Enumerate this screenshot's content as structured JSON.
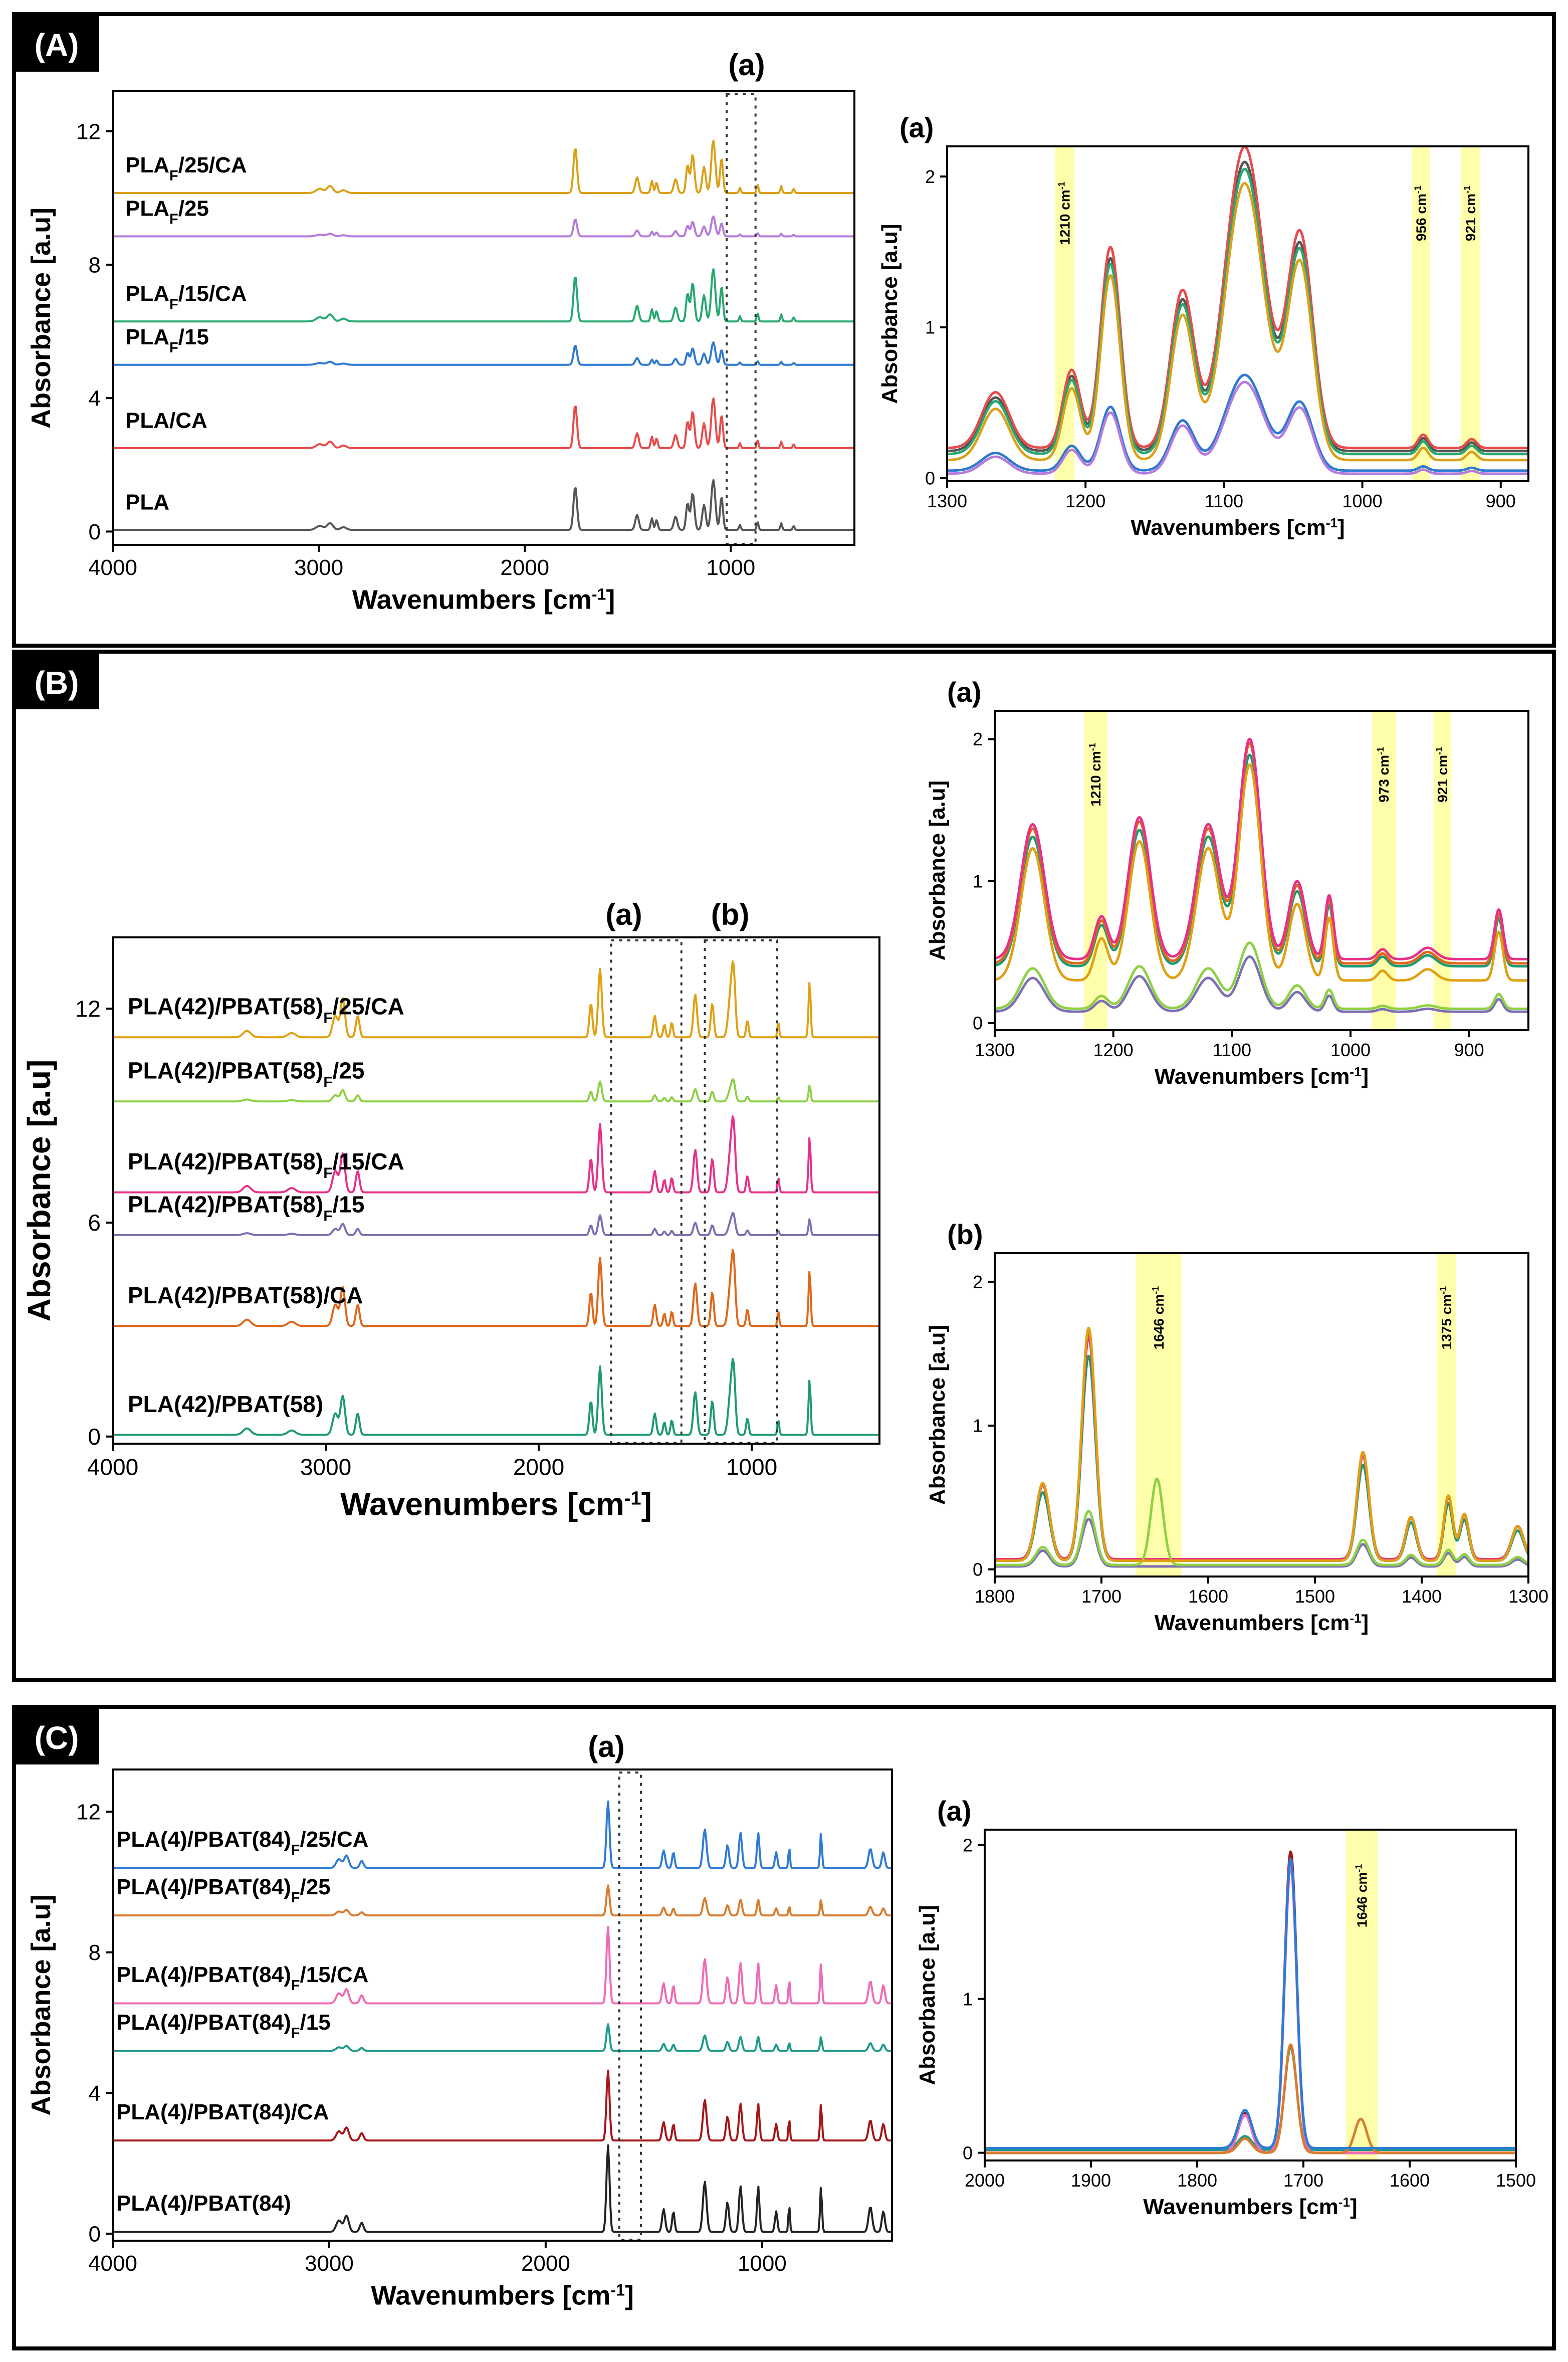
{
  "panels": [
    {
      "label": "(A)",
      "marker": "(a)",
      "xlabel": "Wavenumbers [cm",
      "xlabel_sup": "-1",
      "xlabel_end": "]",
      "ylabel": "Absorbance [a.u]",
      "xticks": [
        "4000",
        "3000",
        "2000",
        "1000"
      ],
      "yticks": [
        "0",
        "4",
        "8",
        "12"
      ]
    },
    {
      "label": "(B)",
      "marker_a": "(a)",
      "marker_b": "(b)",
      "xlabel": "Wavenumbers [cm",
      "xlabel_sup": "-1",
      "xlabel_end": "]",
      "ylabel": "Absorbance [a.u]",
      "xticks": [
        "4000",
        "3000",
        "2000",
        "1000"
      ],
      "yticks": [
        "0",
        "6",
        "12"
      ]
    },
    {
      "label": "(C)",
      "marker": "(a)",
      "xlabel": "Wavenumbers [cm",
      "xlabel_sup": "-1",
      "xlabel_end": "]",
      "ylabel": "Absorbance [a.u]",
      "xticks": [
        "4000",
        "3000",
        "2000",
        "1000"
      ],
      "yticks": [
        "0",
        "4",
        "8",
        "12"
      ]
    }
  ],
  "chart_data": [
    {
      "id": "A-main",
      "type": "line",
      "xlim": [
        4000,
        400
      ],
      "ylim": [
        -0.4,
        13.2
      ],
      "xticks": [
        4000,
        3000,
        2000,
        1000
      ],
      "yticks": [
        0,
        4,
        8,
        12
      ],
      "xlabel": "Wavenumbers [cm-1]",
      "ylabel": "Absorbance [a.u]",
      "zoom_box": {
        "label": "(a)",
        "x": [
          1020,
          880
        ]
      },
      "peaks": [
        [
          2995,
          0.12,
          25
        ],
        [
          2945,
          0.2,
          20
        ],
        [
          2880,
          0.08,
          20
        ],
        [
          1755,
          1.3,
          12
        ],
        [
          1455,
          0.45,
          12
        ],
        [
          1383,
          0.35,
          8
        ],
        [
          1360,
          0.3,
          8
        ],
        [
          1268,
          0.4,
          12
        ],
        [
          1210,
          0.8,
          10
        ],
        [
          1185,
          1.1,
          12
        ],
        [
          1130,
          0.75,
          12
        ],
        [
          1085,
          1.5,
          14
        ],
        [
          1045,
          1.0,
          10
        ],
        [
          956,
          0.15,
          6
        ],
        [
          870,
          0.25,
          6
        ],
        [
          755,
          0.2,
          6
        ],
        [
          695,
          0.12,
          6
        ]
      ],
      "series": [
        {
          "name": "PLA",
          "label": "PLA",
          "sub": "",
          "suffix": "",
          "color": "#555555",
          "offset": 0.05,
          "scale": 1.0
        },
        {
          "name": "PLA/CA",
          "label": "PLA/CA",
          "sub": "",
          "suffix": "",
          "color": "#e84b4b",
          "offset": 2.5,
          "scale": 1.0
        },
        {
          "name": "PLAF/15",
          "label": "PLA",
          "sub": "F",
          "suffix": "/15",
          "color": "#2e79d0",
          "offset": 5.0,
          "scale": 0.45
        },
        {
          "name": "PLAF/15/CA",
          "label": "PLA",
          "sub": "F",
          "suffix": "/15/CA",
          "color": "#27a870",
          "offset": 6.3,
          "scale": 1.05
        },
        {
          "name": "PLAF/25",
          "label": "PLA",
          "sub": "F",
          "suffix": "/25",
          "color": "#b57bdb",
          "offset": 8.85,
          "scale": 0.4
        },
        {
          "name": "PLAF/25/CA",
          "label": "PLA",
          "sub": "F",
          "suffix": "/25/CA",
          "color": "#d9a119",
          "offset": 10.15,
          "scale": 1.05
        }
      ]
    },
    {
      "id": "A-zoom",
      "type": "line",
      "xlim": [
        1300,
        880
      ],
      "ylim": [
        -0.02,
        2.2
      ],
      "xticks": [
        1300,
        1200,
        1100,
        1000,
        900
      ],
      "yticks": [
        0,
        1,
        2
      ],
      "xlabel": "Wavenumbers [cm-1]",
      "ylabel": "Absorbance [a.u]",
      "title": "(a)",
      "bands": [
        {
          "x": [
            1222,
            1208
          ],
          "label": "1210 cm",
          "sup": "-1"
        },
        {
          "x": [
            964,
            951
          ],
          "label": "956 cm",
          "sup": "-1"
        },
        {
          "x": [
            929,
            915
          ],
          "label": "921 cm",
          "sup": "-1"
        }
      ],
      "peaks": [
        [
          1265,
          0.25,
          14
        ],
        [
          1210,
          0.35,
          9
        ],
        [
          1182,
          0.9,
          10
        ],
        [
          1130,
          0.7,
          12
        ],
        [
          1085,
          1.35,
          20
        ],
        [
          1045,
          0.95,
          13
        ],
        [
          956,
          0.06,
          5
        ],
        [
          921,
          0.04,
          5
        ]
      ],
      "series": [
        {
          "name": "PLA",
          "color": "#555555",
          "base": 0.18,
          "scale": 1.42
        },
        {
          "name": "PLA/CA",
          "color": "#e84b4b",
          "base": 0.2,
          "scale": 1.48
        },
        {
          "name": "PLAF/15",
          "color": "#2e79d0",
          "base": 0.05,
          "scale": 0.47
        },
        {
          "name": "PLAF/15/CA",
          "color": "#27a870",
          "base": 0.16,
          "scale": 1.4
        },
        {
          "name": "PLAF/25",
          "color": "#b57bdb",
          "base": 0.03,
          "scale": 0.45
        },
        {
          "name": "PLAF/25/CA",
          "color": "#d9a119",
          "base": 0.12,
          "scale": 1.36
        }
      ]
    },
    {
      "id": "B-main",
      "type": "line",
      "xlim": [
        4000,
        400
      ],
      "ylim": [
        -0.2,
        14.0
      ],
      "xticks": [
        4000,
        3000,
        2000,
        1000
      ],
      "yticks": [
        0,
        6,
        12
      ],
      "xlabel": "Wavenumbers [cm-1]",
      "ylabel": "Absorbance [a.u]",
      "zoom_boxes": [
        {
          "label": "(a)",
          "x": [
            1660,
            1330
          ]
        },
        {
          "label": "(b)",
          "x": [
            1220,
            880
          ]
        }
      ],
      "peaks": [
        [
          3370,
          0.15,
          25
        ],
        [
          3160,
          0.1,
          25
        ],
        [
          2955,
          0.5,
          18
        ],
        [
          2920,
          0.9,
          15
        ],
        [
          2850,
          0.5,
          12
        ],
        [
          1755,
          0.8,
          10
        ],
        [
          1712,
          1.6,
          12
        ],
        [
          1455,
          0.5,
          10
        ],
        [
          1410,
          0.3,
          8
        ],
        [
          1375,
          0.35,
          8
        ],
        [
          1265,
          1.0,
          12
        ],
        [
          1185,
          0.8,
          10
        ],
        [
          1100,
          0.9,
          15
        ],
        [
          1085,
          1.4,
          12
        ],
        [
          1020,
          0.4,
          8
        ],
        [
          875,
          0.35,
          6
        ],
        [
          728,
          1.3,
          7
        ]
      ],
      "series": [
        {
          "name": "PLA(42)/PBAT(58)",
          "label": "PLA(42)/PBAT(58)",
          "sub": "",
          "suffix": "",
          "color": "#1d9a73",
          "offset": 0.05,
          "scale": 1.2
        },
        {
          "name": "PLA(42)/PBAT(58)/CA",
          "label": "PLA(42)/PBAT(58)/CA",
          "sub": "",
          "suffix": "",
          "color": "#e0661a",
          "offset": 3.1,
          "scale": 1.2
        },
        {
          "name": "PLA(42)/PBAT(58)F/15",
          "label": "PLA(42)/PBAT(58)",
          "sub": "F",
          "suffix": "/15",
          "color": "#7d6fb3",
          "offset": 5.65,
          "scale": 0.35
        },
        {
          "name": "PLA(42)/PBAT(58)F/15/CA",
          "label": "PLA(42)/PBAT(58)",
          "sub": "F",
          "suffix": "/15/CA",
          "color": "#e7308a",
          "offset": 6.85,
          "scale": 1.2
        },
        {
          "name": "PLA(42)/PBAT(58)F/25",
          "label": "PLA(42)/PBAT(58)",
          "sub": "F",
          "suffix": "/25",
          "color": "#8ed045",
          "offset": 9.4,
          "scale": 0.35
        },
        {
          "name": "PLA(42)/PBAT(58)F/25/CA",
          "label": "PLA(42)/PBAT(58)",
          "sub": "F",
          "suffix": "/25/CA",
          "color": "#e0a012",
          "offset": 11.2,
          "scale": 1.2
        }
      ]
    },
    {
      "id": "B-zoom-a",
      "type": "line",
      "xlim": [
        1300,
        850
      ],
      "ylim": [
        -0.05,
        2.2
      ],
      "xticks": [
        1300,
        1200,
        1100,
        1000,
        900
      ],
      "yticks": [
        0,
        1,
        2
      ],
      "xlabel": "Wavenumbers [cm-1]",
      "ylabel": "Absorbance [a.u]",
      "title": "(a)",
      "bands": [
        {
          "x": [
            1225,
            1205
          ],
          "label": "1210 cm",
          "sup": "-1"
        },
        {
          "x": [
            982,
            962
          ],
          "label": "973 cm",
          "sup": "-1"
        },
        {
          "x": [
            930,
            915
          ],
          "label": "921 cm",
          "sup": "-1"
        }
      ],
      "peaks": [
        [
          1268,
          0.95,
          14
        ],
        [
          1210,
          0.3,
          8
        ],
        [
          1178,
          1.0,
          13
        ],
        [
          1120,
          0.95,
          14
        ],
        [
          1085,
          1.55,
          13
        ],
        [
          1045,
          0.55,
          10
        ],
        [
          1018,
          0.45,
          5
        ],
        [
          973,
          0.07,
          6
        ],
        [
          935,
          0.08,
          10
        ],
        [
          875,
          0.35,
          5
        ]
      ],
      "series": [
        {
          "name": "PLA(42)/PBAT(58)",
          "color": "#1d9a73",
          "base": 0.4,
          "scale": 0.96
        },
        {
          "name": "PLA(42)/PBAT(58)/CA",
          "color": "#e0661a",
          "base": 0.42,
          "scale": 1.0
        },
        {
          "name": "PLA(42)/PBAT(58)F/15",
          "color": "#7d6fb3",
          "base": 0.08,
          "scale": 0.25
        },
        {
          "name": "PLA(42)/PBAT(58)F/15/CA",
          "color": "#e7308a",
          "base": 0.45,
          "scale": 1.0
        },
        {
          "name": "PLA(42)/PBAT(58)F/25",
          "color": "#8ed045",
          "base": 0.1,
          "scale": 0.3
        },
        {
          "name": "PLA(42)/PBAT(58)F/25/CA",
          "color": "#e0a012",
          "base": 0.3,
          "scale": 0.98
        }
      ]
    },
    {
      "id": "B-zoom-b",
      "type": "line",
      "xlim": [
        1800,
        1300
      ],
      "ylim": [
        -0.05,
        2.2
      ],
      "xticks": [
        1800,
        1700,
        1600,
        1500,
        1400,
        1300
      ],
      "yticks": [
        0,
        1,
        2
      ],
      "xlabel": "Wavenumbers [cm-1]",
      "ylabel": "Absorbance [a.u]",
      "title": "(b)",
      "bands": [
        {
          "x": [
            1668,
            1625
          ],
          "label": "1646 cm",
          "sup": "-1"
        },
        {
          "x": [
            1386,
            1368
          ],
          "label": "1375 cm",
          "sup": "-1"
        }
      ],
      "peaks": [
        [
          1755,
          0.5,
          9
        ],
        [
          1712,
          1.5,
          9
        ],
        [
          1646,
          0.0,
          8
        ],
        [
          1455,
          0.7,
          8
        ],
        [
          1410,
          0.28,
          7
        ],
        [
          1375,
          0.42,
          6
        ],
        [
          1360,
          0.3,
          6
        ],
        [
          1310,
          0.22,
          8
        ]
      ],
      "series": [
        {
          "name": "PLA(42)/PBAT(58)",
          "color": "#1d9a73",
          "base": 0.06,
          "scale": 0.95
        },
        {
          "name": "PLA(42)/PBAT(58)/CA",
          "color": "#e0661a",
          "base": 0.07,
          "scale": 1.05
        },
        {
          "name": "PLA(42)/PBAT(58)F/15",
          "color": "#7d6fb3",
          "base": 0.02,
          "scale": 0.22
        },
        {
          "name": "PLA(42)/PBAT(58)F/15/CA",
          "color": "#e7308a",
          "base": 0.07,
          "scale": 1.03
        },
        {
          "name": "PLA(42)/PBAT(58)F/25",
          "color": "#8ed045",
          "base": 0.03,
          "scale": 0.25,
          "extra_peak": [
            1648,
            0.6,
            8
          ]
        },
        {
          "name": "PLA(42)/PBAT(58)F/25/CA",
          "color": "#e0a012",
          "base": 0.06,
          "scale": 1.08
        }
      ]
    },
    {
      "id": "C-main",
      "type": "line",
      "xlim": [
        4000,
        400
      ],
      "ylim": [
        -0.2,
        13.2
      ],
      "xticks": [
        4000,
        3000,
        2000,
        1000
      ],
      "yticks": [
        0,
        4,
        8,
        12
      ],
      "xlabel": "Wavenumbers [cm-1]",
      "ylabel": "Absorbance [a.u]",
      "zoom_box": {
        "label": "(a)",
        "x": [
          1660,
          1560
        ]
      },
      "peaks": [
        [
          2955,
          0.25,
          18
        ],
        [
          2920,
          0.35,
          15
        ],
        [
          2850,
          0.2,
          12
        ],
        [
          1712,
          1.9,
          10
        ],
        [
          1455,
          0.5,
          10
        ],
        [
          1410,
          0.45,
          8
        ],
        [
          1265,
          1.1,
          12
        ],
        [
          1160,
          0.65,
          10
        ],
        [
          1100,
          1.0,
          10
        ],
        [
          1018,
          1.0,
          8
        ],
        [
          935,
          0.45,
          8
        ],
        [
          875,
          0.6,
          5
        ],
        [
          728,
          1.0,
          6
        ],
        [
          500,
          0.55,
          12
        ],
        [
          440,
          0.45,
          10
        ]
      ],
      "series": [
        {
          "name": "PLA(4)/PBAT(84)",
          "label": "PLA(4)/PBAT(84)",
          "sub": "",
          "suffix": "",
          "color": "#222222",
          "offset": 0.05,
          "scale": 1.3
        },
        {
          "name": "PLA(4)/PBAT(84)/CA",
          "label": "PLA(4)/PBAT(84)/CA",
          "sub": "",
          "suffix": "",
          "color": "#a4161a",
          "offset": 2.65,
          "scale": 1.05
        },
        {
          "name": "PLA(4)/PBAT(84)F/15",
          "label": "PLA(4)/PBAT(84)",
          "sub": "F",
          "suffix": "/15",
          "color": "#1f9b8a",
          "offset": 5.2,
          "scale": 0.4
        },
        {
          "name": "PLA(4)/PBAT(84)F/15/CA",
          "label": "PLA(4)/PBAT(84)",
          "sub": "F",
          "suffix": "/15/CA",
          "color": "#f06bb5",
          "offset": 6.55,
          "scale": 1.15
        },
        {
          "name": "PLA(4)/PBAT(84)F/25",
          "label": "PLA(4)/PBAT(84)",
          "sub": "F",
          "suffix": "/25",
          "color": "#d97c2c",
          "offset": 9.05,
          "scale": 0.45
        },
        {
          "name": "PLA(4)/PBAT(84)F/25/CA",
          "label": "PLA(4)/PBAT(84)",
          "sub": "F",
          "suffix": "/25/CA",
          "color": "#2e7bd6",
          "offset": 10.4,
          "scale": 1.0
        }
      ]
    },
    {
      "id": "C-zoom",
      "type": "line",
      "xlim": [
        2000,
        1500
      ],
      "ylim": [
        -0.05,
        2.1
      ],
      "xticks": [
        2000,
        1900,
        1800,
        1700,
        1600,
        1500
      ],
      "yticks": [
        0,
        1,
        2
      ],
      "xlabel": "Wavenumbers [cm-1]",
      "ylabel": "Absorbance [a.u]",
      "title": "(a)",
      "bands": [
        {
          "x": [
            1660,
            1630
          ],
          "label": "1646 cm",
          "sup": "-1"
        }
      ],
      "peaks": [
        [
          1755,
          0.25,
          9
        ],
        [
          1712,
          1.9,
          8
        ]
      ],
      "series": [
        {
          "name": "PLA(4)/PBAT(84)",
          "color": "#222222",
          "base": 0.0,
          "scale": 1.0
        },
        {
          "name": "PLA(4)/PBAT(84)/CA",
          "color": "#a4161a",
          "base": 0.0,
          "scale": 1.03
        },
        {
          "name": "PLA(4)/PBAT(84)F/15",
          "color": "#1f9b8a",
          "base": 0.02,
          "scale": 0.35
        },
        {
          "name": "PLA(4)/PBAT(84)F/15/CA",
          "color": "#f06bb5",
          "base": 0.0,
          "scale": 0.98
        },
        {
          "name": "PLA(4)/PBAT(84)F/25",
          "color": "#d97c2c",
          "base": 0.0,
          "scale": 0.37,
          "extra_peak": [
            1646,
            0.22,
            8
          ]
        },
        {
          "name": "PLA(4)/PBAT(84)F/25/CA",
          "color": "#2e7bd6",
          "base": 0.03,
          "scale": 0.99
        }
      ]
    }
  ]
}
